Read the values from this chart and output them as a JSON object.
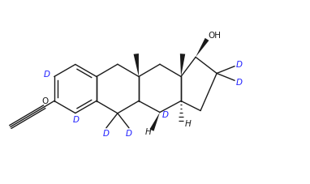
{
  "bg_color": "#ffffff",
  "line_color": "#1a1a1a",
  "label_color_D": "#1a1aff",
  "label_color_black": "#1a1a1a",
  "figsize": [
    3.82,
    2.27
  ],
  "dpi": 100,
  "xlim": [
    0,
    9.5
  ],
  "ylim": [
    0,
    5.5
  ]
}
